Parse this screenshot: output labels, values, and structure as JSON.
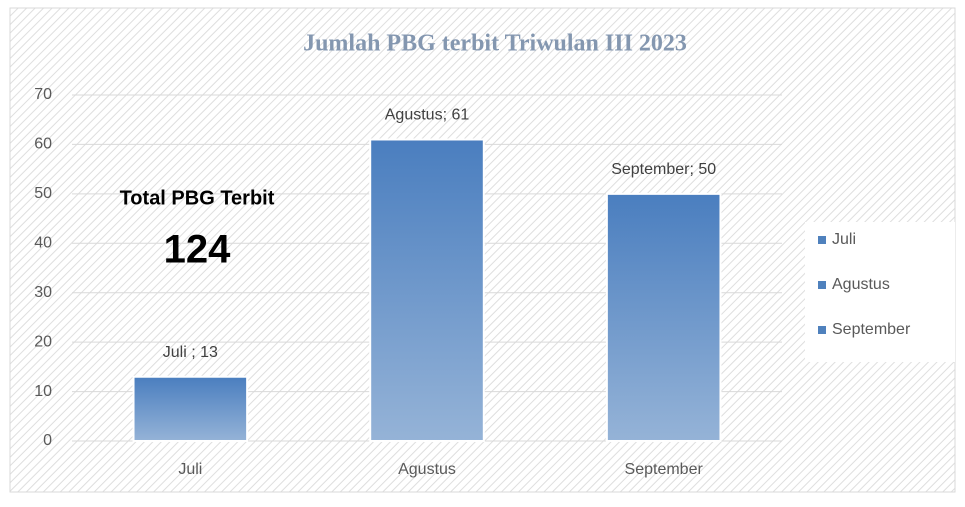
{
  "chart_data": {
    "type": "bar",
    "title": "Jumlah PBG terbit Triwulan III 2023",
    "categories": [
      "Juli",
      "Agustus",
      "September"
    ],
    "values": [
      13,
      61,
      50
    ],
    "value_labels": [
      "Juli ; 13",
      "Agustus; 61",
      "September; 50"
    ],
    "color": "#4f81bd",
    "ylim": [
      0,
      70
    ],
    "yticks": [
      0,
      10,
      20,
      30,
      40,
      50,
      60,
      70
    ],
    "grid": true,
    "legend": "right",
    "annotations": [
      "Total PBG Terbit",
      "124"
    ]
  }
}
